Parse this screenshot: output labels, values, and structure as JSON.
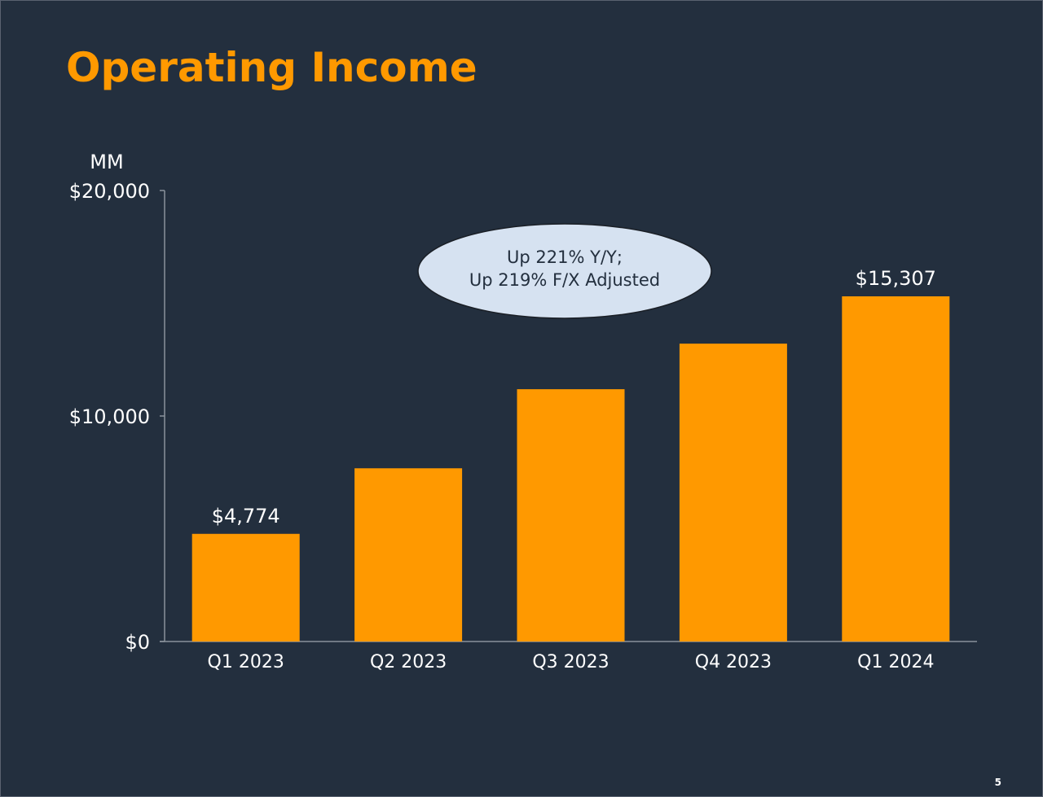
{
  "slide": {
    "title": "Operating Income",
    "page_number": "5"
  },
  "colors": {
    "background": "#232f3e",
    "accent": "#ff9900",
    "bar": "#ff9900",
    "callout_fill": "#d6e2f1",
    "text": "#ffffff",
    "callout_text": "#232f3e"
  },
  "chart_data": {
    "type": "bar",
    "unit_label": "MM",
    "categories": [
      "Q1 2023",
      "Q2 2023",
      "Q3 2023",
      "Q4 2023",
      "Q1 2024"
    ],
    "values": [
      4774,
      7681,
      11188,
      13209,
      15307
    ],
    "data_labels": [
      "$4,774",
      "",
      "",
      "",
      "$15,307"
    ],
    "ylim": [
      0,
      20000
    ],
    "yticks": [
      {
        "value": 0,
        "label": "$0"
      },
      {
        "value": 10000,
        "label": "$10,000"
      },
      {
        "value": 20000,
        "label": "$20,000"
      }
    ],
    "grid": false,
    "legend": "none",
    "callout": {
      "lines": [
        "Up 221% Y/Y;",
        "Up 219% F/X Adjusted"
      ]
    }
  }
}
